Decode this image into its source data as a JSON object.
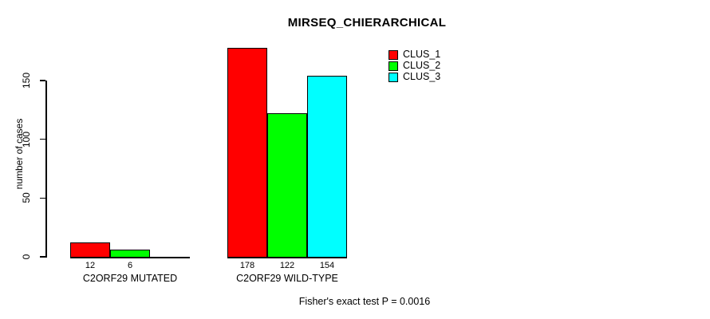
{
  "chart_data": {
    "type": "bar",
    "title": "MIRSEQ_CHIERARCHICAL",
    "ylabel": "number of cases",
    "xlabel": "",
    "annotation": "Fisher's exact test P = 0.0016",
    "ylim": [
      0,
      150
    ],
    "yticks": [
      0,
      50,
      100,
      150
    ],
    "grid": false,
    "legend_position": "top-right",
    "bar_value_labels_shown": true,
    "categories": [
      "C2ORF29 MUTATED",
      "C2ORF29 WILD-TYPE"
    ],
    "series": [
      {
        "name": "CLUS_1",
        "color": "#ff0000",
        "values": [
          12,
          178
        ]
      },
      {
        "name": "CLUS_2",
        "color": "#00ff00",
        "values": [
          6,
          122
        ]
      },
      {
        "name": "CLUS_3",
        "color": "#00ffff",
        "values": [
          0,
          154
        ]
      }
    ]
  },
  "colors": {
    "axis": "#000000",
    "background": "#ffffff",
    "text": "#000000"
  }
}
